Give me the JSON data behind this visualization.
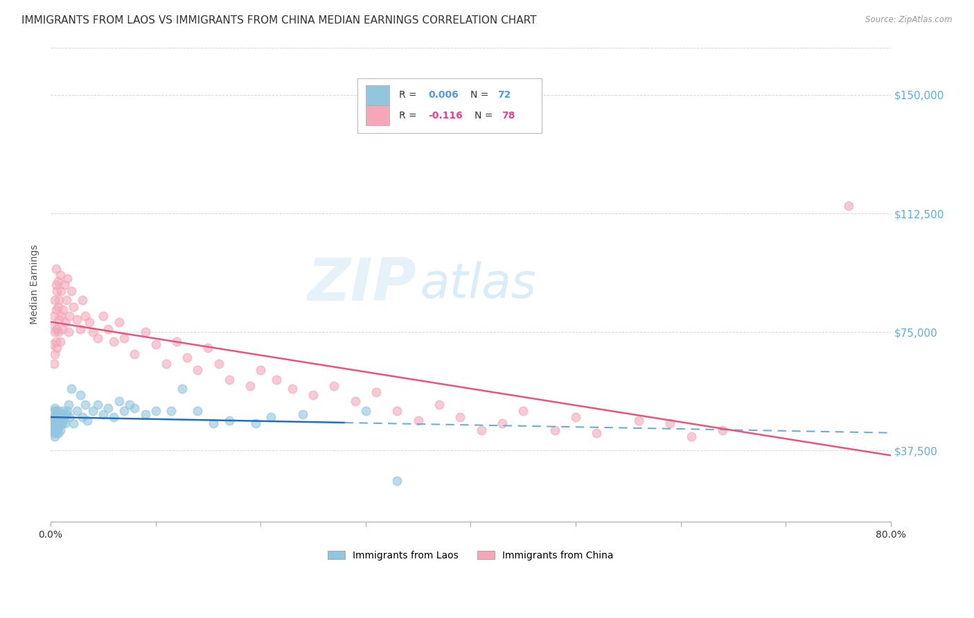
{
  "title": "IMMIGRANTS FROM LAOS VS IMMIGRANTS FROM CHINA MEDIAN EARNINGS CORRELATION CHART",
  "source": "Source: ZipAtlas.com",
  "ylabel": "Median Earnings",
  "xlim": [
    0.0,
    0.8
  ],
  "ylim": [
    15000,
    165000
  ],
  "xticks": [
    0.0,
    0.1,
    0.2,
    0.3,
    0.4,
    0.5,
    0.6,
    0.7,
    0.8
  ],
  "xticklabels": [
    "0.0%",
    "",
    "",
    "",
    "",
    "",
    "",
    "",
    "80.0%"
  ],
  "ytick_positions": [
    37500,
    75000,
    112500,
    150000
  ],
  "ytick_labels": [
    "$37,500",
    "$75,000",
    "$112,500",
    "$150,000"
  ],
  "watermark_zip": "ZIP",
  "watermark_atlas": "atlas",
  "legend_laos_label": "Immigrants from Laos",
  "legend_china_label": "Immigrants from China",
  "laos_r": "0.006",
  "laos_n": "72",
  "china_r": "-0.116",
  "china_n": "78",
  "color_laos": "#92c5de",
  "color_china": "#f4a7b9",
  "color_laos_line_solid": "#1f6fbf",
  "color_laos_line_dashed": "#6aaed6",
  "color_china_line": "#e8547a",
  "laos_scatter_x": [
    0.002,
    0.002,
    0.003,
    0.003,
    0.003,
    0.003,
    0.004,
    0.004,
    0.004,
    0.004,
    0.004,
    0.004,
    0.005,
    0.005,
    0.005,
    0.005,
    0.005,
    0.005,
    0.005,
    0.006,
    0.006,
    0.006,
    0.006,
    0.007,
    0.007,
    0.007,
    0.007,
    0.008,
    0.008,
    0.008,
    0.009,
    0.009,
    0.01,
    0.01,
    0.011,
    0.011,
    0.012,
    0.012,
    0.013,
    0.014,
    0.015,
    0.016,
    0.017,
    0.018,
    0.02,
    0.022,
    0.025,
    0.028,
    0.03,
    0.033,
    0.035,
    0.04,
    0.045,
    0.05,
    0.055,
    0.06,
    0.065,
    0.07,
    0.075,
    0.08,
    0.09,
    0.1,
    0.115,
    0.125,
    0.14,
    0.155,
    0.17,
    0.195,
    0.21,
    0.24,
    0.3,
    0.33
  ],
  "laos_scatter_y": [
    46000,
    44000,
    48000,
    45000,
    43000,
    50000,
    47000,
    46000,
    44000,
    48000,
    42000,
    51000,
    46000,
    44000,
    47000,
    43000,
    48000,
    45000,
    50000,
    46000,
    45000,
    48000,
    44000,
    47000,
    46000,
    49000,
    43000,
    48000,
    45000,
    50000,
    46000,
    44000,
    47000,
    49000,
    48000,
    46000,
    50000,
    47000,
    48000,
    46000,
    49000,
    50000,
    52000,
    48000,
    57000,
    46000,
    50000,
    55000,
    48000,
    52000,
    47000,
    50000,
    52000,
    49000,
    51000,
    48000,
    53000,
    50000,
    52000,
    51000,
    49000,
    50000,
    50000,
    57000,
    50000,
    46000,
    47000,
    46000,
    48000,
    49000,
    50000,
    28000
  ],
  "china_scatter_x": [
    0.002,
    0.003,
    0.003,
    0.003,
    0.004,
    0.004,
    0.004,
    0.005,
    0.005,
    0.005,
    0.005,
    0.006,
    0.006,
    0.006,
    0.007,
    0.007,
    0.007,
    0.008,
    0.008,
    0.009,
    0.009,
    0.01,
    0.01,
    0.011,
    0.012,
    0.013,
    0.014,
    0.015,
    0.016,
    0.017,
    0.018,
    0.02,
    0.022,
    0.025,
    0.028,
    0.03,
    0.033,
    0.037,
    0.04,
    0.045,
    0.05,
    0.055,
    0.06,
    0.065,
    0.07,
    0.08,
    0.09,
    0.1,
    0.11,
    0.12,
    0.13,
    0.14,
    0.15,
    0.16,
    0.17,
    0.19,
    0.2,
    0.215,
    0.23,
    0.25,
    0.27,
    0.29,
    0.31,
    0.33,
    0.35,
    0.37,
    0.39,
    0.41,
    0.43,
    0.45,
    0.48,
    0.5,
    0.52,
    0.56,
    0.59,
    0.61,
    0.64,
    0.76
  ],
  "china_scatter_y": [
    71000,
    77000,
    65000,
    80000,
    85000,
    75000,
    68000,
    90000,
    82000,
    72000,
    95000,
    88000,
    76000,
    70000,
    83000,
    91000,
    75000,
    85000,
    79000,
    93000,
    72000,
    80000,
    88000,
    76000,
    82000,
    90000,
    78000,
    85000,
    92000,
    75000,
    80000,
    88000,
    83000,
    79000,
    76000,
    85000,
    80000,
    78000,
    75000,
    73000,
    80000,
    76000,
    72000,
    78000,
    73000,
    68000,
    75000,
    71000,
    65000,
    72000,
    67000,
    63000,
    70000,
    65000,
    60000,
    58000,
    63000,
    60000,
    57000,
    55000,
    58000,
    53000,
    56000,
    50000,
    47000,
    52000,
    48000,
    44000,
    46000,
    50000,
    44000,
    48000,
    43000,
    47000,
    46000,
    42000,
    44000,
    115000
  ],
  "background_color": "#ffffff",
  "grid_color": "#cccccc",
  "title_fontsize": 11,
  "axis_label_fontsize": 10,
  "tick_label_fontsize": 9
}
